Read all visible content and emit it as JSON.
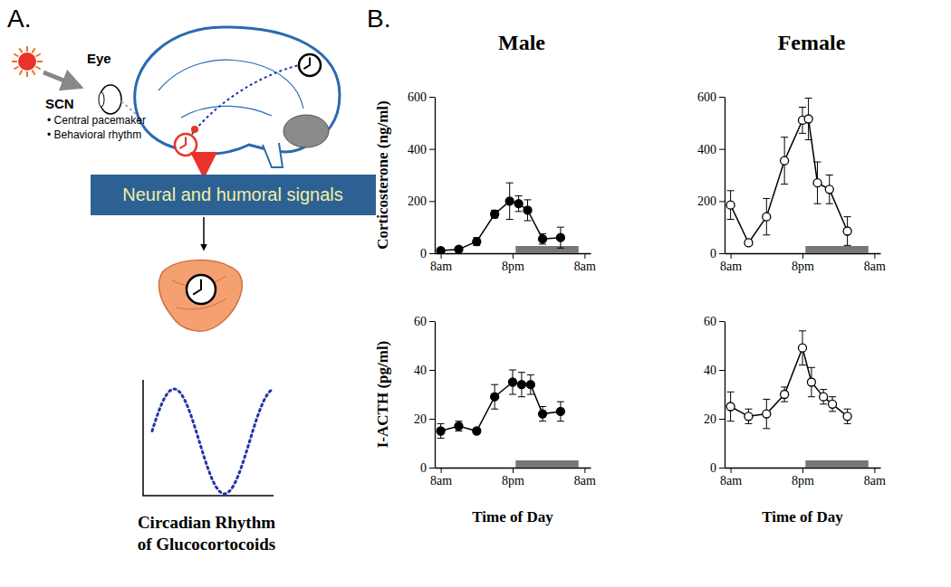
{
  "panel_labels": [
    "A.",
    "B."
  ],
  "diagram": {
    "eye_label": "Eye",
    "scn_label": "SCN",
    "scn_notes": [
      "• Central pacemaker",
      "• Behavioral rhythm"
    ],
    "signal_box": "Neural and humoral signals",
    "caption": [
      "Circadian Rhythm",
      "of Glucocortocoids"
    ]
  },
  "chart_data": [
    {
      "type": "line",
      "title": "Male",
      "ylabel": "Corticosterone (ng/ml)",
      "x": [
        0,
        3,
        6,
        9,
        11.5,
        13,
        14.5,
        17,
        20
      ],
      "values": [
        10,
        15,
        45,
        150,
        200,
        190,
        165,
        55,
        60
      ],
      "errors": [
        5,
        5,
        15,
        15,
        70,
        30,
        40,
        20,
        40
      ],
      "dark_phase": [
        12.5,
        23
      ],
      "xlim": [
        -1,
        25
      ],
      "xticks": [
        {
          "value": 0,
          "label": "8am"
        },
        {
          "value": 12,
          "label": "8pm"
        },
        {
          "value": 24,
          "label": "8am"
        }
      ],
      "ylim": [
        0,
        600
      ],
      "yticks": [
        0,
        200,
        400,
        600
      ],
      "color": "#000000",
      "marker": "circle"
    },
    {
      "type": "line",
      "title": "Female",
      "x": [
        0,
        3,
        6,
        9,
        12,
        13,
        14.5,
        16.5,
        19.5
      ],
      "values": [
        185,
        40,
        140,
        355,
        510,
        515,
        270,
        245,
        85
      ],
      "errors": [
        55,
        10,
        70,
        90,
        50,
        80,
        80,
        55,
        55
      ],
      "dark_phase": [
        12.5,
        23
      ],
      "xlim": [
        -1,
        25
      ],
      "xticks": [
        {
          "value": 0,
          "label": "8am"
        },
        {
          "value": 12,
          "label": "8pm"
        },
        {
          "value": 24,
          "label": "8am"
        }
      ],
      "ylim": [
        0,
        600
      ],
      "yticks": [
        0,
        200,
        400,
        600
      ],
      "color": "#000000",
      "marker": "open_circle"
    },
    {
      "type": "line",
      "ylabel": "I-ACTH (pg/ml)",
      "xlabel": "Time of Day",
      "x": [
        0,
        3,
        6,
        9,
        12,
        13.5,
        15,
        17,
        20
      ],
      "values": [
        15,
        17,
        15,
        29,
        35,
        34,
        34,
        22,
        23
      ],
      "errors": [
        3,
        2,
        1,
        5,
        5,
        5,
        4,
        3,
        4
      ],
      "dark_phase": [
        12.5,
        23
      ],
      "xlim": [
        -1,
        25
      ],
      "xticks": [
        {
          "value": 0,
          "label": "8am"
        },
        {
          "value": 12,
          "label": "8pm"
        },
        {
          "value": 24,
          "label": "8am"
        }
      ],
      "ylim": [
        0,
        60
      ],
      "yticks": [
        0,
        20,
        40,
        60
      ],
      "color": "#000000",
      "marker": "circle"
    },
    {
      "type": "line",
      "xlabel": "Time of Day",
      "x": [
        0,
        3,
        6,
        9,
        12,
        13.5,
        15.5,
        17,
        19.5
      ],
      "values": [
        25,
        21,
        22,
        30,
        49,
        35,
        29,
        26,
        21
      ],
      "errors": [
        6,
        3,
        6,
        3,
        7,
        6,
        3,
        3,
        3
      ],
      "dark_phase": [
        12.5,
        23
      ],
      "xlim": [
        -1,
        25
      ],
      "xticks": [
        {
          "value": 0,
          "label": "8am"
        },
        {
          "value": 12,
          "label": "8pm"
        },
        {
          "value": 24,
          "label": "8am"
        }
      ],
      "ylim": [
        0,
        60
      ],
      "yticks": [
        0,
        20,
        40,
        60
      ],
      "color": "#000000",
      "marker": "open_circle"
    }
  ]
}
